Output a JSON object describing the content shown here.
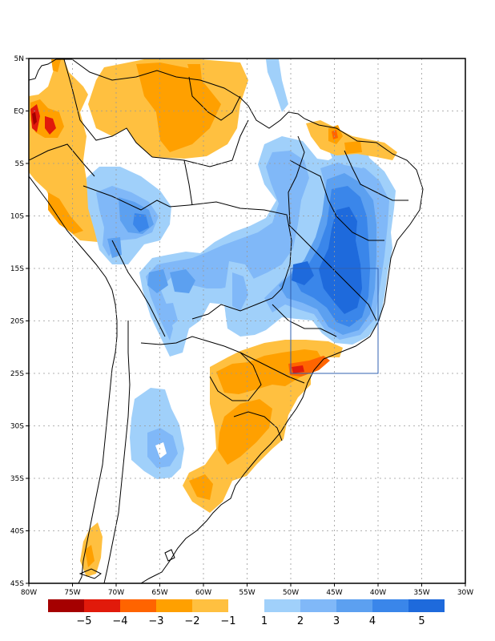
{
  "map": {
    "lon_range": [
      -80,
      -30
    ],
    "lat_range": [
      -45,
      5
    ],
    "lon_ticks": [
      {
        "value": -80,
        "label": "80W"
      },
      {
        "value": -75,
        "label": "75W"
      },
      {
        "value": -70,
        "label": "70W"
      },
      {
        "value": -65,
        "label": "65W"
      },
      {
        "value": -60,
        "label": "60W"
      },
      {
        "value": -55,
        "label": "55W"
      },
      {
        "value": -50,
        "label": "50W"
      },
      {
        "value": -45,
        "label": "45W"
      },
      {
        "value": -40,
        "label": "40W"
      },
      {
        "value": -35,
        "label": "35W"
      },
      {
        "value": -30,
        "label": "30W"
      }
    ],
    "lat_ticks": [
      {
        "value": 5,
        "label": "5N"
      },
      {
        "value": 0,
        "label": "EQ"
      },
      {
        "value": -5,
        "label": "5S"
      },
      {
        "value": -10,
        "label": "10S"
      },
      {
        "value": -15,
        "label": "15S"
      },
      {
        "value": -20,
        "label": "20S"
      },
      {
        "value": -25,
        "label": "25S"
      },
      {
        "value": -30,
        "label": "30S"
      },
      {
        "value": -35,
        "label": "35S"
      },
      {
        "value": -40,
        "label": "40S"
      },
      {
        "value": -45,
        "label": "45S"
      }
    ],
    "highlight_box": {
      "lon_min": -50,
      "lon_max": -40,
      "lat_min": -25,
      "lat_max": -15
    },
    "colors": {
      "neg5": "#a50000",
      "neg4": "#e11a0b",
      "neg3": "#ff6400",
      "neg2": "#ffa000",
      "neg1": "#ffc040",
      "pos1": "#a0d0fa",
      "pos2": "#80b8f8",
      "pos3": "#5ca0f0",
      "pos4": "#3a86ea",
      "pos5": "#1e6adc",
      "box": "#3060b0",
      "grid": "#999999"
    }
  },
  "colorbar": {
    "negative": [
      {
        "color": "#a50000",
        "label": "−5"
      },
      {
        "color": "#e11a0b",
        "label": "−4"
      },
      {
        "color": "#ff6400",
        "label": "−3"
      },
      {
        "color": "#ffa000",
        "label": "−2"
      },
      {
        "color": "#ffc040",
        "label": "−1"
      }
    ],
    "positive": [
      {
        "color": "#a0d0fa",
        "label": "1"
      },
      {
        "color": "#80b8f8",
        "label": "2"
      },
      {
        "color": "#5ca0f0",
        "label": "3"
      },
      {
        "color": "#3a86ea",
        "label": "4"
      },
      {
        "color": "#1e6adc",
        "label": ""
      }
    ],
    "end_label": "5"
  }
}
